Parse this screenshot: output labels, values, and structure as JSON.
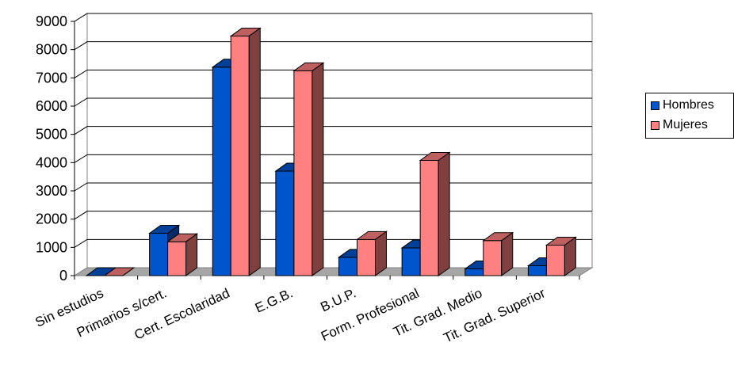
{
  "chart_data": {
    "type": "bar",
    "categories": [
      "Sin estudios",
      "Primarios s/cert.",
      "Cert. Escolaridad",
      "E.G.B.",
      "B.U.P.",
      "Form. Profesional",
      "Tit. Grad. Medio",
      "Tit. Grad. Superior"
    ],
    "series": [
      {
        "name": "Hombres",
        "values": [
          0,
          1500,
          7380,
          3700,
          650,
          980,
          240,
          350
        ],
        "color": "#0055cc"
      },
      {
        "name": "Mujeres",
        "values": [
          0,
          1200,
          8480,
          7250,
          1280,
          4080,
          1240,
          1080
        ],
        "color": "#ff8080"
      }
    ],
    "yticks": [
      "0",
      "1000",
      "2000",
      "3000",
      "4000",
      "5000",
      "6000",
      "7000",
      "8000",
      "9000"
    ],
    "ylim": [
      0,
      9000
    ],
    "grid": true,
    "legend_position": "right",
    "title": "",
    "xlabel": "",
    "ylabel": ""
  }
}
